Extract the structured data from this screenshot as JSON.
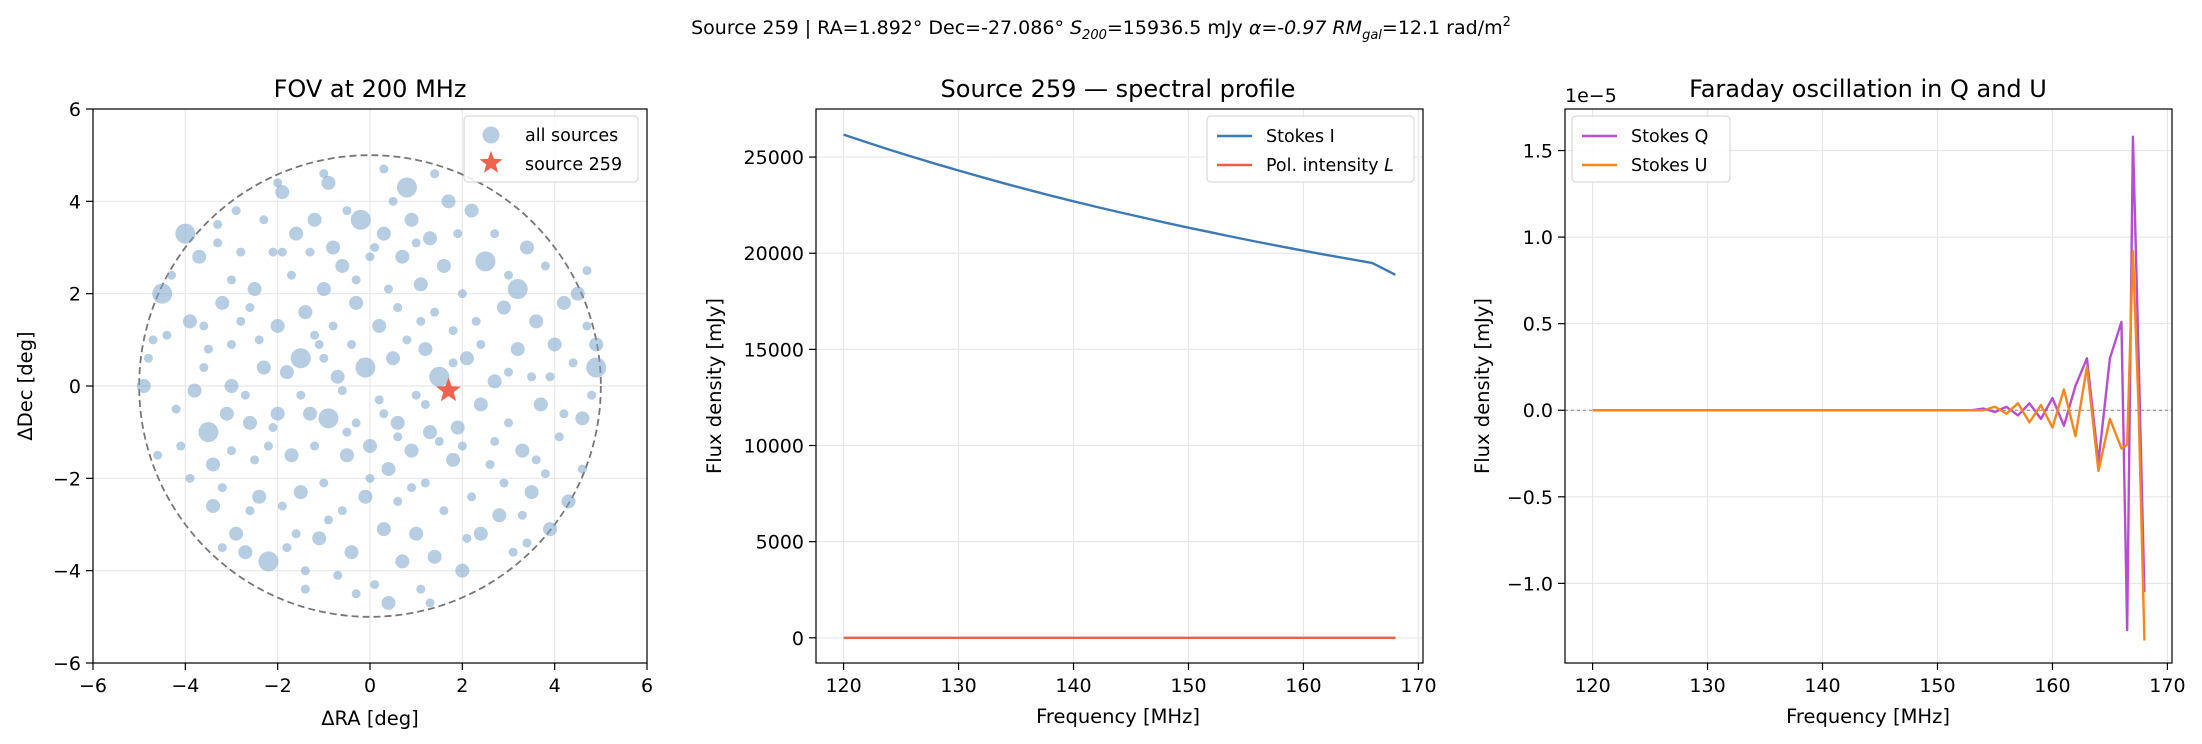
{
  "suptitle": {
    "lead": "Source 259 | RA=1.892°  Dec=-27.086°  ",
    "s_sym": "S",
    "s_sub": "200",
    "s_val": "=15936.5 mJy  ",
    "alpha": "α=-0.97  ",
    "rm_sym": "RM",
    "rm_sub": "gal",
    "rm_val": "=12.1 rad/m",
    "rm_sup": "2"
  },
  "colors": {
    "all_sources": "#7ba4c8",
    "source_star": "#f0624d",
    "stokes_i": "#3d7ab5",
    "pol_intensity": "#ee5e48",
    "stokes_q": "#b54fcf",
    "stokes_u": "#f6871c",
    "fov_circle": "#777777",
    "grid": "#e8e8e8"
  },
  "chart_data": [
    {
      "type": "scatter",
      "title": "FOV at 200 MHz",
      "xlabel": "ΔRA [deg]",
      "ylabel": "ΔDec [deg]",
      "xlim": [
        -6,
        6
      ],
      "ylim": [
        -6,
        6
      ],
      "xticks": [
        -6,
        -4,
        -2,
        0,
        2,
        4,
        6
      ],
      "yticks": [
        -6,
        -4,
        -2,
        0,
        2,
        4,
        6
      ],
      "xtick_labels": [
        "−6",
        "−4",
        "−2",
        "0",
        "2",
        "4",
        "6"
      ],
      "ytick_labels": [
        "−6",
        "−4",
        "−2",
        "0",
        "2",
        "4",
        "6"
      ],
      "grid": true,
      "fov_radius": 5,
      "legend_position": "upper right",
      "legend": [
        "all sources",
        "source 259"
      ],
      "source": {
        "x": 1.7,
        "y": -0.1
      },
      "sources": [
        [
          -4.9,
          0.0,
          2
        ],
        [
          -4.7,
          1.0,
          1
        ],
        [
          -4.5,
          2.0,
          3
        ],
        [
          -4.3,
          2.4,
          1
        ],
        [
          -4.1,
          -1.3,
          1
        ],
        [
          -4.0,
          3.3,
          3
        ],
        [
          -3.9,
          1.4,
          2
        ],
        [
          -3.8,
          -0.1,
          2
        ],
        [
          -3.7,
          2.8,
          2
        ],
        [
          -3.6,
          1.3,
          1
        ],
        [
          -3.5,
          0.8,
          1
        ],
        [
          -3.5,
          -1.0,
          3
        ],
        [
          -3.4,
          -1.7,
          2
        ],
        [
          -3.4,
          -2.6,
          2
        ],
        [
          -3.3,
          3.1,
          1
        ],
        [
          -3.2,
          1.8,
          2
        ],
        [
          -3.2,
          -2.2,
          1
        ],
        [
          -3.1,
          -0.6,
          2
        ],
        [
          -3.0,
          0.0,
          2
        ],
        [
          -3.0,
          2.3,
          1
        ],
        [
          -2.9,
          3.8,
          1
        ],
        [
          -2.9,
          -3.2,
          2
        ],
        [
          -2.8,
          1.4,
          1
        ],
        [
          -2.8,
          2.9,
          1
        ],
        [
          -2.7,
          -3.6,
          2
        ],
        [
          -2.6,
          -0.8,
          2
        ],
        [
          -2.6,
          1.7,
          1
        ],
        [
          -2.5,
          2.1,
          2
        ],
        [
          -2.5,
          -1.6,
          1
        ],
        [
          -2.4,
          -2.4,
          2
        ],
        [
          -2.3,
          3.6,
          1
        ],
        [
          -2.3,
          0.4,
          2
        ],
        [
          -2.2,
          -1.3,
          1
        ],
        [
          -2.2,
          -3.8,
          3
        ],
        [
          -2.1,
          2.9,
          1
        ],
        [
          -2.0,
          1.3,
          2
        ],
        [
          -2.0,
          -0.6,
          2
        ],
        [
          -1.9,
          4.2,
          2
        ],
        [
          -1.9,
          -2.6,
          1
        ],
        [
          -1.8,
          0.3,
          2
        ],
        [
          -1.7,
          2.4,
          1
        ],
        [
          -1.7,
          -1.5,
          2
        ],
        [
          -1.6,
          3.3,
          2
        ],
        [
          -1.6,
          -3.2,
          1
        ],
        [
          -1.5,
          0.6,
          3
        ],
        [
          -1.5,
          -2.3,
          2
        ],
        [
          -1.4,
          1.6,
          2
        ],
        [
          -1.4,
          -4.0,
          1
        ],
        [
          -1.3,
          2.9,
          1
        ],
        [
          -1.3,
          -0.6,
          2
        ],
        [
          -1.2,
          -1.3,
          1
        ],
        [
          -1.2,
          3.6,
          2
        ],
        [
          -1.1,
          0.9,
          1
        ],
        [
          -1.1,
          -3.3,
          2
        ],
        [
          -1.0,
          2.1,
          2
        ],
        [
          -1.0,
          -2.1,
          1
        ],
        [
          -0.9,
          -0.7,
          3
        ],
        [
          -0.9,
          4.4,
          2
        ],
        [
          -0.8,
          1.3,
          1
        ],
        [
          -0.8,
          3.0,
          2
        ],
        [
          -0.7,
          -4.1,
          1
        ],
        [
          -0.7,
          0.2,
          2
        ],
        [
          -0.6,
          -2.7,
          1
        ],
        [
          -0.6,
          2.6,
          2
        ],
        [
          -0.5,
          -1.5,
          2
        ],
        [
          -0.5,
          3.8,
          1
        ],
        [
          -0.4,
          0.9,
          1
        ],
        [
          -0.4,
          -3.6,
          2
        ],
        [
          -0.3,
          1.8,
          2
        ],
        [
          -0.3,
          -0.8,
          1
        ],
        [
          -0.2,
          3.6,
          3
        ],
        [
          -0.1,
          0.4,
          3
        ],
        [
          -0.1,
          -2.4,
          2
        ],
        [
          0.0,
          2.8,
          1
        ],
        [
          0.0,
          -1.3,
          2
        ],
        [
          0.1,
          -4.3,
          1
        ],
        [
          0.2,
          1.3,
          2
        ],
        [
          0.2,
          -0.3,
          1
        ],
        [
          0.3,
          3.3,
          2
        ],
        [
          0.3,
          -3.1,
          2
        ],
        [
          0.4,
          2.1,
          1
        ],
        [
          0.4,
          -1.8,
          2
        ],
        [
          0.5,
          4.0,
          1
        ],
        [
          0.5,
          0.6,
          2
        ],
        [
          0.6,
          -0.8,
          2
        ],
        [
          0.6,
          -2.5,
          1
        ],
        [
          0.7,
          2.8,
          2
        ],
        [
          0.7,
          -3.8,
          2
        ],
        [
          0.8,
          1.0,
          1
        ],
        [
          0.8,
          4.3,
          3
        ],
        [
          0.9,
          -1.4,
          2
        ],
        [
          0.9,
          3.6,
          2
        ],
        [
          1.0,
          -0.2,
          1
        ],
        [
          1.0,
          -3.2,
          2
        ],
        [
          1.1,
          2.2,
          2
        ],
        [
          1.1,
          -4.4,
          1
        ],
        [
          1.2,
          0.8,
          2
        ],
        [
          1.2,
          -2.1,
          1
        ],
        [
          1.3,
          3.2,
          2
        ],
        [
          1.3,
          -1.0,
          2
        ],
        [
          1.4,
          1.6,
          1
        ],
        [
          1.4,
          -3.7,
          2
        ],
        [
          1.5,
          0.2,
          3
        ],
        [
          1.6,
          2.6,
          2
        ],
        [
          1.6,
          -2.7,
          1
        ],
        [
          1.7,
          4.0,
          2
        ],
        [
          1.8,
          1.2,
          1
        ],
        [
          1.8,
          -1.6,
          2
        ],
        [
          1.9,
          3.3,
          1
        ],
        [
          1.9,
          -0.9,
          2
        ],
        [
          2.0,
          2.0,
          1
        ],
        [
          2.0,
          -4.0,
          2
        ],
        [
          2.1,
          0.6,
          2
        ],
        [
          2.2,
          -2.4,
          1
        ],
        [
          2.2,
          3.8,
          2
        ],
        [
          2.3,
          1.4,
          1
        ],
        [
          2.4,
          -0.4,
          2
        ],
        [
          2.4,
          -3.2,
          2
        ],
        [
          2.5,
          2.7,
          3
        ],
        [
          2.6,
          -1.7,
          1
        ],
        [
          2.7,
          0.1,
          2
        ],
        [
          2.7,
          3.3,
          1
        ],
        [
          2.8,
          -2.8,
          2
        ],
        [
          2.9,
          1.7,
          2
        ],
        [
          3.0,
          -0.8,
          1
        ],
        [
          3.0,
          2.4,
          1
        ],
        [
          3.1,
          -3.6,
          1
        ],
        [
          3.2,
          0.8,
          2
        ],
        [
          3.2,
          2.1,
          3
        ],
        [
          3.3,
          -1.4,
          2
        ],
        [
          3.4,
          3.0,
          2
        ],
        [
          3.5,
          -2.3,
          2
        ],
        [
          3.5,
          0.2,
          1
        ],
        [
          3.6,
          1.4,
          2
        ],
        [
          3.7,
          -0.4,
          2
        ],
        [
          3.8,
          2.6,
          1
        ],
        [
          3.8,
          -1.9,
          1
        ],
        [
          3.9,
          -3.1,
          2
        ],
        [
          4.0,
          0.9,
          2
        ],
        [
          4.1,
          -1.1,
          1
        ],
        [
          4.2,
          1.8,
          2
        ],
        [
          4.3,
          -2.5,
          2
        ],
        [
          4.4,
          0.5,
          1
        ],
        [
          4.5,
          2.0,
          2
        ],
        [
          4.6,
          -0.7,
          2
        ],
        [
          4.7,
          1.3,
          1
        ],
        [
          4.8,
          -0.2,
          1
        ],
        [
          4.9,
          0.9,
          2
        ],
        [
          4.9,
          0.4,
          3
        ],
        [
          -4.4,
          1.1,
          1
        ],
        [
          -4.2,
          -0.5,
          1
        ],
        [
          -3.9,
          -2.0,
          1
        ],
        [
          -3.6,
          0.4,
          1
        ],
        [
          -3.3,
          3.5,
          1
        ],
        [
          -3.0,
          -1.4,
          1
        ],
        [
          -2.7,
          -0.2,
          1
        ],
        [
          -2.4,
          1.0,
          1
        ],
        [
          -2.1,
          -0.9,
          1
        ],
        [
          -1.8,
          -3.5,
          1
        ],
        [
          -1.5,
          -0.2,
          1
        ],
        [
          -1.2,
          1.1,
          1
        ],
        [
          -0.9,
          -2.9,
          1
        ],
        [
          -0.6,
          -0.1,
          1
        ],
        [
          -0.3,
          2.3,
          1
        ],
        [
          0.0,
          -2.0,
          1
        ],
        [
          0.3,
          -0.6,
          1
        ],
        [
          0.6,
          1.7,
          1
        ],
        [
          0.9,
          -2.2,
          1
        ],
        [
          1.2,
          -0.4,
          1
        ],
        [
          1.5,
          -1.2,
          1
        ],
        [
          1.8,
          0.5,
          1
        ],
        [
          2.1,
          -3.3,
          1
        ],
        [
          2.4,
          0.9,
          1
        ],
        [
          2.7,
          -1.2,
          1
        ],
        [
          3.0,
          0.3,
          1
        ],
        [
          3.3,
          -2.8,
          1
        ],
        [
          3.6,
          -1.6,
          1
        ],
        [
          3.9,
          0.2,
          1
        ],
        [
          4.2,
          -0.6,
          1
        ],
        [
          -1.0,
          0.6,
          1
        ],
        [
          -1.9,
          2.9,
          1
        ],
        [
          0.1,
          3.0,
          1
        ],
        [
          1.0,
          3.1,
          1
        ],
        [
          -0.5,
          -1.0,
          1
        ],
        [
          2.0,
          -1.3,
          1
        ],
        [
          -3.0,
          0.9,
          1
        ],
        [
          0.6,
          -1.1,
          1
        ],
        [
          1.1,
          1.4,
          1
        ],
        [
          -2.6,
          -2.7,
          1
        ],
        [
          2.9,
          -2.1,
          1
        ],
        [
          -1.4,
          -4.4,
          1
        ],
        [
          0.4,
          -4.7,
          2
        ],
        [
          -0.3,
          -4.5,
          1
        ],
        [
          1.3,
          -4.7,
          1
        ],
        [
          -2.0,
          4.4,
          1
        ],
        [
          1.4,
          4.6,
          1
        ],
        [
          -1.0,
          4.6,
          1
        ],
        [
          0.3,
          4.7,
          1
        ],
        [
          -3.2,
          -3.5,
          1
        ],
        [
          3.4,
          -3.4,
          1
        ],
        [
          -4.6,
          -1.5,
          1
        ],
        [
          4.6,
          -1.8,
          1
        ],
        [
          -4.8,
          0.6,
          1
        ],
        [
          4.7,
          2.5,
          1
        ]
      ]
    },
    {
      "type": "line",
      "title": "Source 259 — spectral profile",
      "xlabel": "Frequency [MHz]",
      "ylabel": "Flux density [mJy]",
      "xlim": [
        117.6,
        170.4
      ],
      "ylim": [
        -1310,
        27500
      ],
      "xticks": [
        120,
        130,
        140,
        150,
        160,
        170
      ],
      "yticks": [
        0,
        5000,
        10000,
        15000,
        20000,
        25000
      ],
      "grid": true,
      "legend_position": "upper right",
      "x": [
        120,
        122,
        124,
        126,
        128,
        130,
        132,
        134,
        136,
        138,
        140,
        142,
        144,
        146,
        148,
        150,
        152,
        154,
        156,
        158,
        160,
        162,
        164,
        166,
        168
      ],
      "series": [
        {
          "name": "Stokes I",
          "values": [
            26170,
            25770,
            25380,
            25010,
            24650,
            24300,
            23960,
            23630,
            23310,
            23000,
            22700,
            22410,
            22130,
            21860,
            21590,
            21330,
            21080,
            20830,
            20590,
            20360,
            20130,
            19910,
            19700,
            19490,
            18880
          ]
        },
        {
          "name_parts": [
            "Pol. intensity ",
            "L"
          ],
          "values": [
            0,
            0,
            0,
            0,
            0,
            0,
            0,
            0,
            0,
            0,
            0,
            0,
            0,
            0,
            0,
            0,
            0,
            0,
            0,
            0,
            0,
            0,
            0,
            0,
            0
          ]
        }
      ]
    },
    {
      "type": "line",
      "title": "Faraday oscillation in Q and U",
      "xlabel": "Frequency [MHz]",
      "ylabel": "Flux density [mJy]",
      "offset_label": "1e−5",
      "xlim": [
        117.6,
        170.4
      ],
      "ylim": [
        -1.46,
        1.74
      ],
      "xticks": [
        120,
        130,
        140,
        150,
        160,
        170
      ],
      "yticks": [
        -1.0,
        -0.5,
        0.0,
        0.5,
        1.0,
        1.5
      ],
      "ytick_labels": [
        "−1.0",
        "−0.5",
        "0.0",
        "0.5",
        "1.0",
        "1.5"
      ],
      "grid": true,
      "zero_line": true,
      "legend_position": "upper left",
      "x": [
        120,
        150,
        152,
        153,
        154,
        155,
        156,
        157,
        158,
        159,
        160,
        161,
        162,
        163,
        164,
        165,
        166,
        166.5,
        167,
        167.5,
        168
      ],
      "series": [
        {
          "name": "Stokes Q",
          "values": [
            0,
            0,
            0.0,
            0.0,
            0.01,
            -0.01,
            0.02,
            -0.03,
            0.04,
            -0.05,
            0.07,
            -0.09,
            0.14,
            0.3,
            -0.3,
            0.3,
            0.51,
            -1.27,
            1.58,
            0.3,
            -1.05
          ]
        },
        {
          "name": "Stokes U",
          "values": [
            0,
            0,
            0.0,
            0.0,
            0.0,
            0.02,
            -0.02,
            0.04,
            -0.07,
            0.03,
            -0.1,
            0.12,
            -0.15,
            0.25,
            -0.35,
            -0.05,
            -0.22,
            -0.2,
            0.92,
            0.0,
            -1.33
          ]
        }
      ]
    }
  ]
}
